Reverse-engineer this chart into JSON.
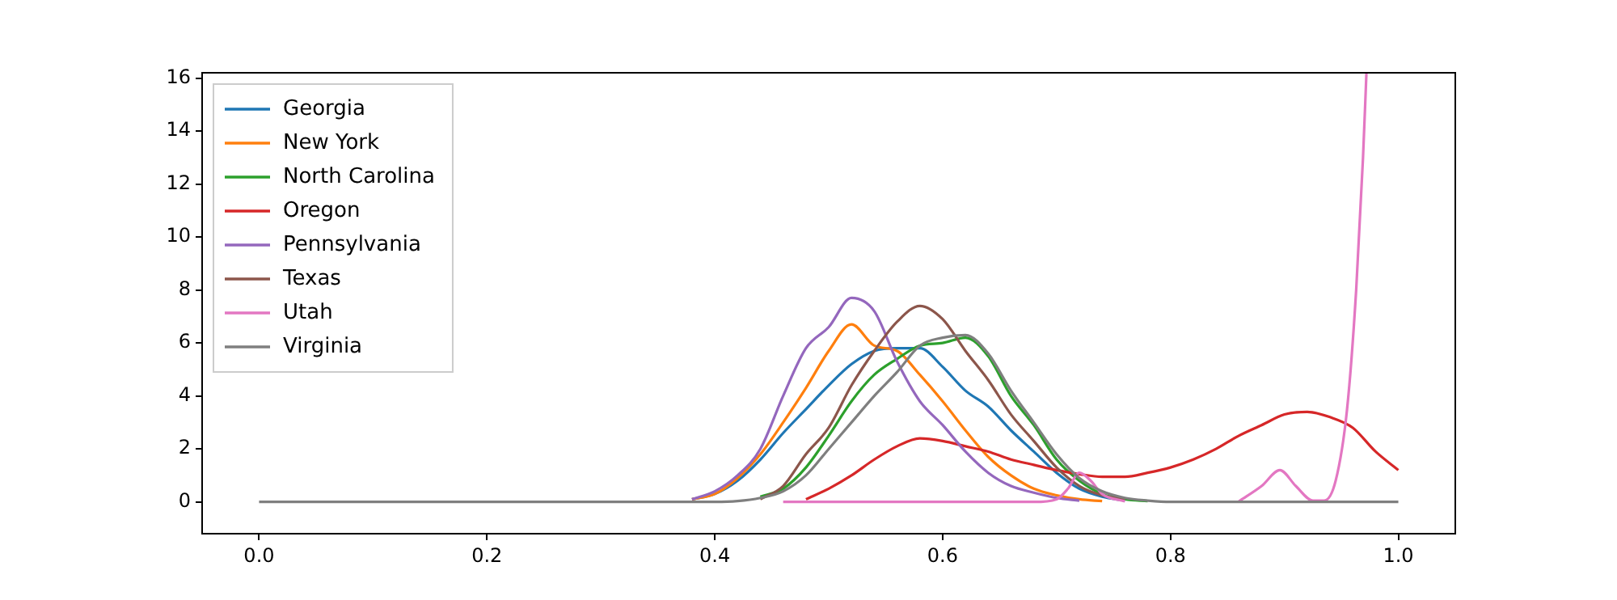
{
  "chart_data": {
    "type": "line",
    "x": [
      0,
      0.2,
      0.36,
      0.38,
      0.4,
      0.42,
      0.44,
      0.46,
      0.48,
      0.5,
      0.52,
      0.54,
      0.56,
      0.58,
      0.6,
      0.62,
      0.64,
      0.66,
      0.68,
      0.7,
      0.72,
      0.74,
      0.76,
      0.78,
      0.8,
      0.82,
      0.84,
      0.86,
      0.88,
      0.9,
      0.92,
      0.94,
      0.96,
      0.98,
      1.0
    ],
    "series": [
      {
        "name": "Georgia",
        "color": "#1f77b4",
        "values": [
          null,
          null,
          null,
          0.1,
          0.3,
          0.8,
          1.6,
          2.6,
          3.5,
          4.4,
          5.2,
          5.7,
          5.8,
          5.8,
          5.1,
          4.2,
          3.6,
          2.7,
          1.9,
          1.1,
          0.5,
          0.2,
          0.05,
          null,
          null,
          null,
          null,
          null,
          null,
          null,
          null,
          null,
          null,
          null,
          null
        ]
      },
      {
        "name": "New York",
        "color": "#ff7f0e",
        "values": [
          null,
          null,
          null,
          0.1,
          0.3,
          0.9,
          1.8,
          3.0,
          4.3,
          5.7,
          6.7,
          5.9,
          5.7,
          4.8,
          3.8,
          2.7,
          1.7,
          1.0,
          0.5,
          0.25,
          0.1,
          0.03,
          null,
          null,
          null,
          null,
          null,
          null,
          null,
          null,
          null,
          null,
          null,
          null,
          null
        ]
      },
      {
        "name": "North Carolina",
        "color": "#2ca02c",
        "values": [
          null,
          null,
          null,
          null,
          null,
          null,
          0.2,
          0.5,
          1.3,
          2.5,
          3.8,
          4.8,
          5.4,
          5.9,
          6.0,
          6.2,
          5.5,
          4.0,
          2.9,
          1.6,
          0.8,
          0.3,
          0.1,
          0.03,
          null,
          null,
          null,
          null,
          null,
          null,
          null,
          null,
          null,
          null,
          null
        ]
      },
      {
        "name": "Oregon",
        "color": "#d62728",
        "values": [
          null,
          null,
          null,
          null,
          null,
          null,
          null,
          null,
          0.1,
          0.5,
          1.0,
          1.6,
          2.1,
          2.4,
          2.3,
          2.1,
          1.9,
          1.6,
          1.4,
          1.2,
          1.05,
          0.95,
          0.95,
          1.1,
          1.3,
          1.6,
          2.0,
          2.5,
          2.9,
          3.3,
          3.4,
          3.2,
          2.8,
          1.9,
          1.2
        ]
      },
      {
        "name": "Pennsylvania",
        "color": "#9467bd",
        "values": [
          null,
          null,
          null,
          0.1,
          0.4,
          1.0,
          2.0,
          4.0,
          5.8,
          6.6,
          7.7,
          7.2,
          5.3,
          3.8,
          2.9,
          1.9,
          1.1,
          0.6,
          0.35,
          0.15,
          0.05,
          null,
          null,
          null,
          null,
          null,
          null,
          null,
          null,
          null,
          null,
          null,
          null,
          null,
          null
        ]
      },
      {
        "name": "Texas",
        "color": "#8c564b",
        "values": [
          null,
          null,
          null,
          null,
          null,
          null,
          0.1,
          0.6,
          1.8,
          2.8,
          4.4,
          5.7,
          6.8,
          7.4,
          6.9,
          5.7,
          4.6,
          3.3,
          2.3,
          1.3,
          0.6,
          0.25,
          0.1,
          null,
          null,
          null,
          null,
          null,
          null,
          null,
          null,
          null,
          null,
          null,
          null
        ]
      },
      {
        "name": "Utah",
        "color": "#e377c2",
        "x": [
          0.46,
          0.6,
          0.68,
          0.7,
          0.71,
          0.72,
          0.73,
          0.74,
          0.76,
          0.8,
          0.84,
          0.86,
          0.88,
          0.896,
          0.91,
          0.925,
          0.935,
          0.945,
          0.955,
          0.963,
          0.969,
          0.972
        ],
        "values": [
          0,
          0,
          0,
          0.1,
          0.5,
          1.1,
          0.8,
          0.3,
          0.02,
          null,
          null,
          0.02,
          0.6,
          1.2,
          0.6,
          0.05,
          0.05,
          0.8,
          3.5,
          8,
          13,
          16.2
        ]
      },
      {
        "name": "Virginia",
        "color": "#7f7f7f",
        "values": [
          0,
          0,
          0,
          0,
          0,
          0.03,
          0.15,
          0.4,
          1.0,
          2.0,
          3.0,
          4.0,
          4.9,
          5.9,
          6.2,
          6.3,
          5.6,
          4.2,
          3.0,
          1.8,
          0.9,
          0.4,
          0.15,
          0.05,
          0,
          0,
          0,
          0,
          0,
          0,
          0,
          0,
          0,
          0,
          0
        ]
      }
    ],
    "xlim": [
      -0.05,
      1.05
    ],
    "ylim": [
      -1.2,
      16.2
    ],
    "xticks": [
      {
        "value": 0,
        "label": "0.0"
      },
      0.2,
      0.4,
      0.6,
      0.8,
      {
        "value": 1,
        "label": "1.0"
      }
    ],
    "yticks": [
      0,
      2,
      4,
      6,
      8,
      10,
      12,
      14,
      16
    ],
    "grid": false,
    "legend": "top left",
    "marker": "none",
    "line_style": "solid"
  }
}
